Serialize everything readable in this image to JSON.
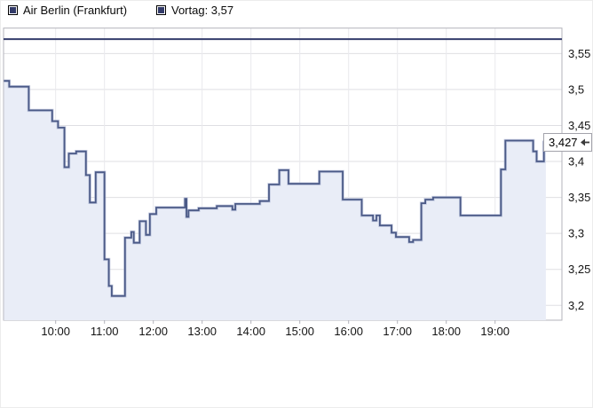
{
  "legend": {
    "items": [
      {
        "label": "Air Berlin (Frankfurt)",
        "marker_color": "#333b69"
      },
      {
        "label": "Vortag: 3,57",
        "marker_color": "#333b69"
      }
    ]
  },
  "chart_data": {
    "type": "line",
    "subtype": "step-area-intraday",
    "title": "Air Berlin (Frankfurt)",
    "xlabel": "",
    "ylabel": "",
    "grid": true,
    "legend_position": "top-left",
    "xlim": [
      8.933,
      20.369
    ],
    "ylim": [
      3.1794,
      3.5853
    ],
    "x_ticks": [
      {
        "hour": 10,
        "label": "10:00"
      },
      {
        "hour": 11,
        "label": "11:00"
      },
      {
        "hour": 12,
        "label": "12:00"
      },
      {
        "hour": 13,
        "label": "13:00"
      },
      {
        "hour": 14,
        "label": "14:00"
      },
      {
        "hour": 15,
        "label": "15:00"
      },
      {
        "hour": 16,
        "label": "16:00"
      },
      {
        "hour": 17,
        "label": "17:00"
      },
      {
        "hour": 18,
        "label": "18:00"
      },
      {
        "hour": 19,
        "label": "19:00"
      }
    ],
    "y_ticks": [
      {
        "value": 3.55,
        "label": "3,55"
      },
      {
        "value": 3.5,
        "label": "3,5"
      },
      {
        "value": 3.45,
        "label": "3,45"
      },
      {
        "value": 3.4,
        "label": "3,4"
      },
      {
        "value": 3.35,
        "label": "3,35"
      },
      {
        "value": 3.3,
        "label": "3,3"
      },
      {
        "value": 3.25,
        "label": "3,25"
      },
      {
        "value": 3.2,
        "label": "3,2"
      }
    ],
    "reference_line": {
      "name": "Vortag",
      "value": 3.57,
      "label": "3,57",
      "color": "#353d6c"
    },
    "last_price": {
      "label": "3,427",
      "value": 3.427
    },
    "series": [
      {
        "name": "Air Berlin (Frankfurt)",
        "color": "#4b5a87",
        "halo_color": "#aab4d3",
        "fill": "#e9edf7",
        "points": [
          [
            8.94,
            3.512
          ],
          [
            9.05,
            3.504
          ],
          [
            9.45,
            3.471
          ],
          [
            9.93,
            3.456
          ],
          [
            10.05,
            3.447
          ],
          [
            10.18,
            3.392
          ],
          [
            10.27,
            3.411
          ],
          [
            10.42,
            3.414
          ],
          [
            10.62,
            3.381
          ],
          [
            10.7,
            3.343
          ],
          [
            10.82,
            3.385
          ],
          [
            11.0,
            3.264
          ],
          [
            11.09,
            3.227
          ],
          [
            11.15,
            3.213
          ],
          [
            11.42,
            3.294
          ],
          [
            11.55,
            3.302
          ],
          [
            11.6,
            3.287
          ],
          [
            11.72,
            3.317
          ],
          [
            11.85,
            3.298
          ],
          [
            11.93,
            3.327
          ],
          [
            12.06,
            3.336
          ],
          [
            12.65,
            3.348
          ],
          [
            12.68,
            3.323
          ],
          [
            12.72,
            3.332
          ],
          [
            12.93,
            3.335
          ],
          [
            13.3,
            3.338
          ],
          [
            13.62,
            3.333
          ],
          [
            13.68,
            3.341
          ],
          [
            14.18,
            3.345
          ],
          [
            14.37,
            3.368
          ],
          [
            14.58,
            3.388
          ],
          [
            14.77,
            3.369
          ],
          [
            15.4,
            3.386
          ],
          [
            15.88,
            3.347
          ],
          [
            16.27,
            3.325
          ],
          [
            16.5,
            3.318
          ],
          [
            16.57,
            3.325
          ],
          [
            16.64,
            3.311
          ],
          [
            16.88,
            3.301
          ],
          [
            16.97,
            3.295
          ],
          [
            17.24,
            3.288
          ],
          [
            17.32,
            3.291
          ],
          [
            17.49,
            3.342
          ],
          [
            17.57,
            3.347
          ],
          [
            17.73,
            3.35
          ],
          [
            18.29,
            3.325
          ],
          [
            19.12,
            3.389
          ],
          [
            19.21,
            3.429
          ],
          [
            19.78,
            3.414
          ],
          [
            19.85,
            3.4
          ],
          [
            20.0,
            3.427
          ],
          [
            20.04,
            3.427
          ]
        ]
      }
    ],
    "colors": {
      "grid_h": "#dfdfe3",
      "grid_v": "#e9e9ed",
      "border": "#b3b3bb",
      "label": "#141414",
      "plot_bg": "#ffffff"
    }
  }
}
